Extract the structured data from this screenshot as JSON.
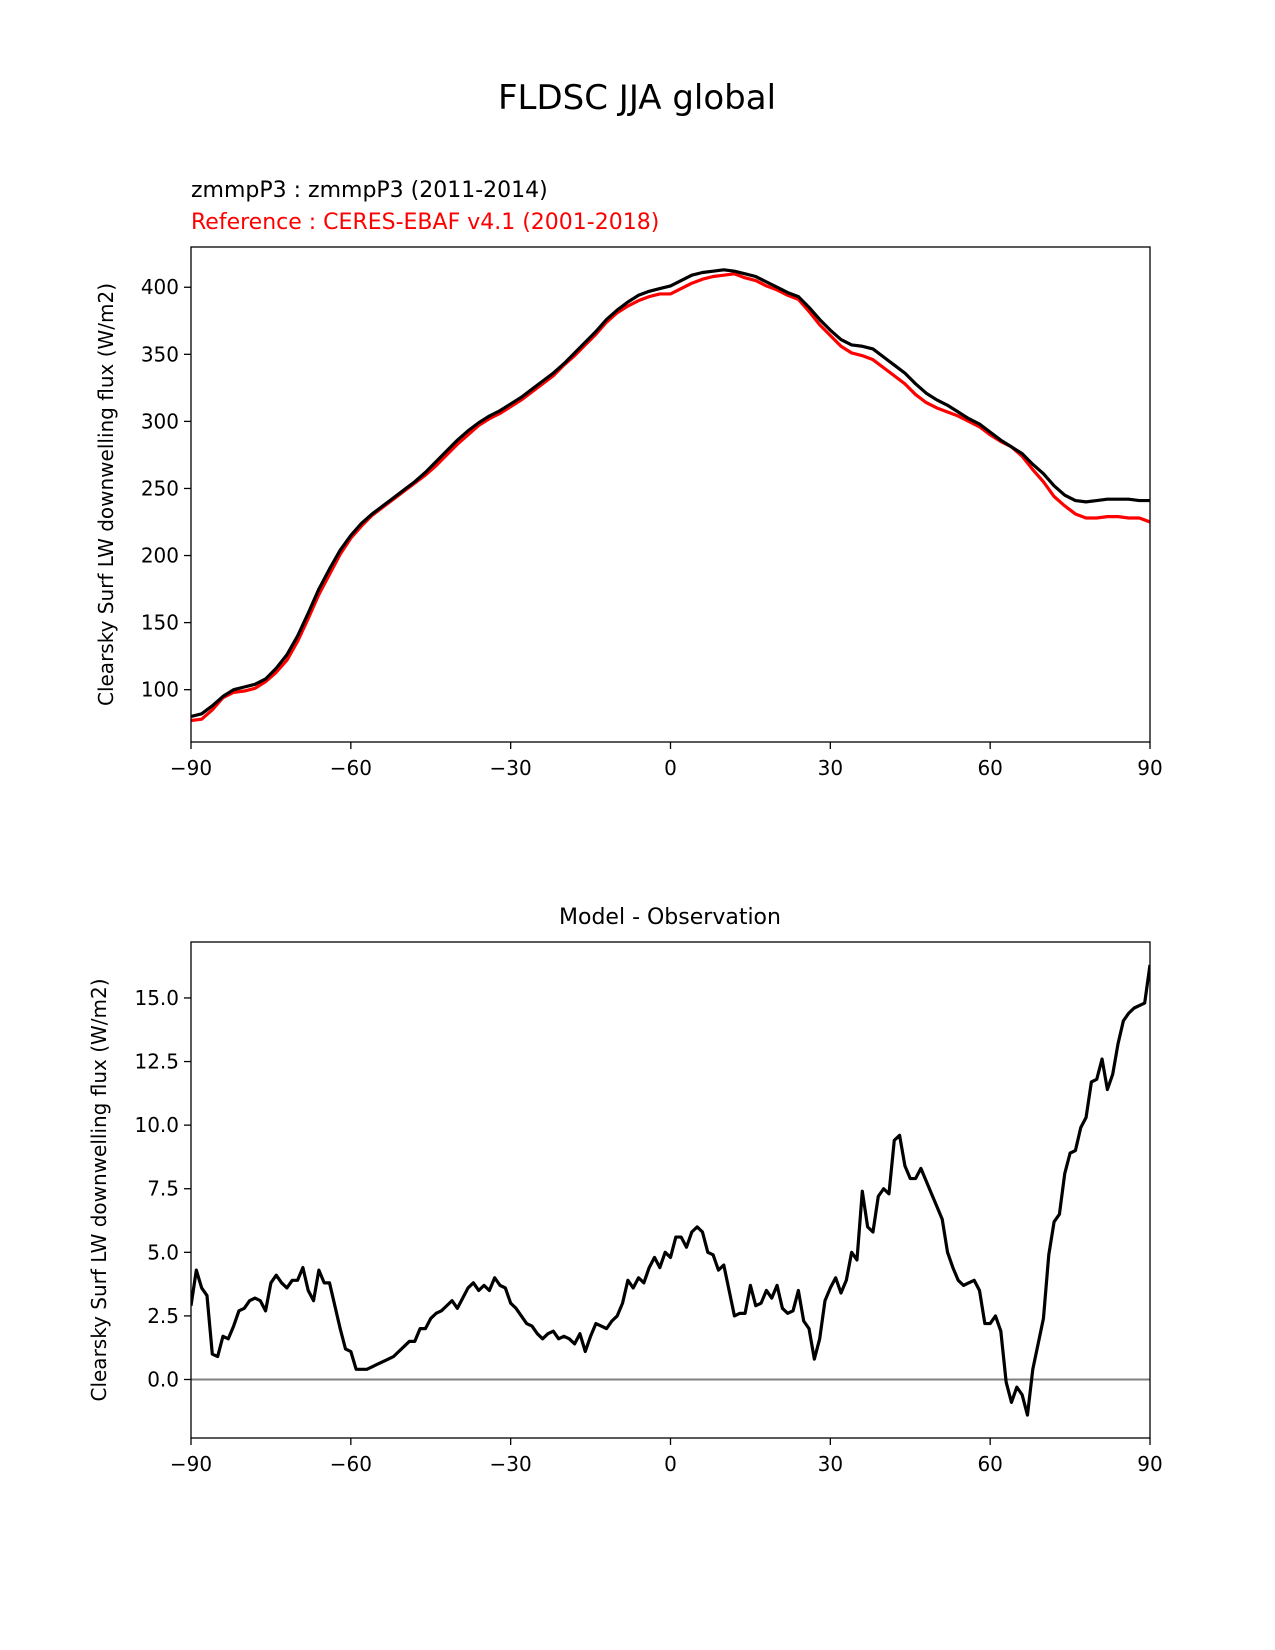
{
  "figure": {
    "title": "FLDSC JJA global",
    "legend_model": "zmmpP3 : zmmpP3 (2011-2014)",
    "legend_ref": "Reference : CERES-EBAF v4.1 (2001-2018)",
    "colors": {
      "model": "#000000",
      "reference": "#ff0000",
      "zero_line": "#808080"
    }
  },
  "chart_data": [
    {
      "type": "line",
      "title": "",
      "xlabel": "",
      "ylabel": "Clearsky Surf LW downwelling flux (W/m2)",
      "xlim": [
        -90,
        90
      ],
      "ylim": [
        61,
        430
      ],
      "xticks": [
        -90,
        -60,
        -30,
        0,
        30,
        60,
        90
      ],
      "xtick_labels": [
        "−90",
        "−60",
        "−30",
        "0",
        "30",
        "60",
        "90"
      ],
      "yticks": [
        100,
        150,
        200,
        250,
        300,
        350,
        400
      ],
      "ytick_labels": [
        "100",
        "150",
        "200",
        "250",
        "300",
        "350",
        "400"
      ],
      "series": [
        {
          "name": "zmmpP3 : zmmpP3 (2011-2014)",
          "color": "#000000",
          "x": [
            -90,
            -88,
            -86,
            -84,
            -82,
            -80,
            -78,
            -76,
            -74,
            -72,
            -70,
            -68,
            -66,
            -64,
            -62,
            -60,
            -58,
            -56,
            -54,
            -52,
            -50,
            -48,
            -46,
            -44,
            -42,
            -40,
            -38,
            -36,
            -34,
            -32,
            -30,
            -28,
            -26,
            -24,
            -22,
            -20,
            -18,
            -16,
            -14,
            -12,
            -10,
            -8,
            -6,
            -4,
            -2,
            0,
            2,
            4,
            6,
            8,
            10,
            12,
            14,
            16,
            18,
            20,
            22,
            24,
            26,
            28,
            30,
            32,
            34,
            36,
            38,
            40,
            42,
            44,
            46,
            48,
            50,
            52,
            54,
            56,
            58,
            60,
            62,
            64,
            66,
            68,
            70,
            72,
            74,
            76,
            78,
            80,
            82,
            84,
            86,
            88,
            90
          ],
          "y": [
            80,
            82,
            88,
            95,
            100,
            102,
            104,
            108,
            116,
            126,
            140,
            157,
            175,
            190,
            204,
            215,
            224,
            231,
            237,
            243,
            249,
            255,
            262,
            270,
            278,
            286,
            293,
            299,
            304,
            308,
            313,
            318,
            324,
            330,
            336,
            343,
            351,
            359,
            367,
            376,
            383,
            389,
            394,
            397,
            399,
            401,
            405,
            409,
            411,
            412,
            413,
            412,
            410,
            408,
            404,
            400,
            396,
            393,
            385,
            376,
            368,
            361,
            357,
            356,
            354,
            348,
            342,
            336,
            328,
            321,
            316,
            312,
            307,
            302,
            298,
            292,
            286,
            281,
            276,
            268,
            261,
            252,
            245,
            241,
            240,
            241,
            242,
            242,
            242,
            241,
            241
          ]
        },
        {
          "name": "Reference : CERES-EBAF v4.1 (2001-2018)",
          "color": "#ff0000",
          "x": [
            -90,
            -88,
            -86,
            -84,
            -82,
            -80,
            -78,
            -76,
            -74,
            -72,
            -70,
            -68,
            -66,
            -64,
            -62,
            -60,
            -58,
            -56,
            -54,
            -52,
            -50,
            -48,
            -46,
            -44,
            -42,
            -40,
            -38,
            -36,
            -34,
            -32,
            -30,
            -28,
            -26,
            -24,
            -22,
            -20,
            -18,
            -16,
            -14,
            -12,
            -10,
            -8,
            -6,
            -4,
            -2,
            0,
            2,
            4,
            6,
            8,
            10,
            12,
            14,
            16,
            18,
            20,
            22,
            24,
            26,
            28,
            30,
            32,
            34,
            36,
            38,
            40,
            42,
            44,
            46,
            48,
            50,
            52,
            54,
            56,
            58,
            60,
            62,
            64,
            66,
            68,
            70,
            72,
            74,
            76,
            78,
            80,
            82,
            84,
            86,
            88,
            90
          ],
          "y": [
            77,
            78,
            85,
            94,
            98,
            99,
            101,
            106,
            113,
            122,
            136,
            153,
            171,
            186,
            201,
            213,
            222,
            230,
            236,
            242,
            248,
            254,
            260,
            267,
            275,
            283,
            290,
            297,
            302,
            306,
            311,
            316,
            322,
            328,
            334,
            342,
            349,
            357,
            365,
            374,
            381,
            386,
            390,
            393,
            395,
            395,
            399,
            403,
            406,
            408,
            409,
            410,
            407,
            405,
            401,
            398,
            394,
            391,
            382,
            372,
            364,
            356,
            351,
            349,
            346,
            340,
            334,
            328,
            320,
            314,
            310,
            307,
            304,
            300,
            296,
            290,
            285,
            281,
            274,
            264,
            255,
            244,
            237,
            231,
            228,
            228,
            229,
            229,
            228,
            228,
            225
          ]
        }
      ]
    },
    {
      "type": "line",
      "title": "Model - Observation",
      "xlabel": "",
      "ylabel": "Clearsky Surf LW downwelling flux (W/m2)",
      "xlim": [
        -90,
        90
      ],
      "ylim": [
        -2.3,
        17.2
      ],
      "xticks": [
        -90,
        -60,
        -30,
        0,
        30,
        60,
        90
      ],
      "xtick_labels": [
        "−90",
        "−60",
        "−30",
        "0",
        "30",
        "60",
        "90"
      ],
      "yticks": [
        0.0,
        2.5,
        5.0,
        7.5,
        10.0,
        12.5,
        15.0
      ],
      "ytick_labels": [
        "0.0",
        "2.5",
        "5.0",
        "7.5",
        "10.0",
        "12.5",
        "15.0"
      ],
      "zero_line": 0,
      "series": [
        {
          "name": "",
          "color": "#000000",
          "x": [
            -90,
            -89,
            -88,
            -87,
            -86,
            -85,
            -84,
            -83,
            -82,
            -81,
            -80,
            -79,
            -78,
            -77,
            -76,
            -75,
            -74,
            -73,
            -72,
            -71,
            -70,
            -69,
            -68,
            -67,
            -66,
            -65,
            -64,
            -63,
            -62,
            -61,
            -60,
            -59,
            -58,
            -57,
            -56,
            -55,
            -54,
            -53,
            -52,
            -51,
            -50,
            -49,
            -48,
            -47,
            -46,
            -45,
            -44,
            -43,
            -42,
            -41,
            -40,
            -39,
            -38,
            -37,
            -36,
            -35,
            -34,
            -33,
            -32,
            -31,
            -30,
            -29,
            -28,
            -27,
            -26,
            -25,
            -24,
            -23,
            -22,
            -21,
            -20,
            -19,
            -18,
            -17,
            -16,
            -15,
            -14,
            -13,
            -12,
            -11,
            -10,
            -9,
            -8,
            -7,
            -6,
            -5,
            -4,
            -3,
            -2,
            -1,
            0,
            1,
            2,
            3,
            4,
            5,
            6,
            7,
            8,
            9,
            10,
            11,
            12,
            13,
            14,
            15,
            16,
            17,
            18,
            19,
            20,
            21,
            22,
            23,
            24,
            25,
            26,
            27,
            28,
            29,
            30,
            31,
            32,
            33,
            34,
            35,
            36,
            37,
            38,
            39,
            40,
            41,
            42,
            43,
            44,
            45,
            46,
            47,
            48,
            49,
            50,
            51,
            52,
            53,
            54,
            55,
            56,
            57,
            58,
            59,
            60,
            61,
            62,
            63,
            64,
            65,
            66,
            67,
            68,
            69,
            70,
            71,
            72,
            73,
            74,
            75,
            76,
            77,
            78,
            79,
            80,
            81,
            82,
            83,
            84,
            85,
            86,
            87,
            88,
            89,
            90
          ],
          "y": [
            2.9,
            4.3,
            3.6,
            3.3,
            1.0,
            0.9,
            1.7,
            1.6,
            2.1,
            2.7,
            2.8,
            3.1,
            3.2,
            3.1,
            2.7,
            3.8,
            4.1,
            3.8,
            3.6,
            3.9,
            3.9,
            4.4,
            3.5,
            3.1,
            4.3,
            3.8,
            3.8,
            2.9,
            2.0,
            1.2,
            1.1,
            0.4,
            0.4,
            0.4,
            0.5,
            0.6,
            0.7,
            0.8,
            0.9,
            1.1,
            1.3,
            1.5,
            1.5,
            2.0,
            2.0,
            2.4,
            2.6,
            2.7,
            2.9,
            3.1,
            2.8,
            3.2,
            3.6,
            3.8,
            3.5,
            3.7,
            3.5,
            4.0,
            3.7,
            3.6,
            3.0,
            2.8,
            2.5,
            2.2,
            2.1,
            1.8,
            1.6,
            1.8,
            1.9,
            1.6,
            1.7,
            1.6,
            1.4,
            1.8,
            1.1,
            1.7,
            2.2,
            2.1,
            2.0,
            2.3,
            2.5,
            3.0,
            3.9,
            3.6,
            4.0,
            3.8,
            4.4,
            4.8,
            4.4,
            5.0,
            4.8,
            5.6,
            5.6,
            5.2,
            5.8,
            6.0,
            5.8,
            5.0,
            4.9,
            4.3,
            4.5,
            3.5,
            2.5,
            2.6,
            2.6,
            3.7,
            2.9,
            3.0,
            3.5,
            3.2,
            3.7,
            2.8,
            2.6,
            2.7,
            3.5,
            2.3,
            2.0,
            0.8,
            1.6,
            3.1,
            3.6,
            4.0,
            3.4,
            3.9,
            5.0,
            4.7,
            7.4,
            6.0,
            5.8,
            7.2,
            7.5,
            7.3,
            9.4,
            9.6,
            8.4,
            7.9,
            7.9,
            8.3,
            7.8,
            7.3,
            6.8,
            6.3,
            5.0,
            4.4,
            3.9,
            3.7,
            3.8,
            3.9,
            3.5,
            2.2,
            2.2,
            2.5,
            1.9,
            -0.1,
            -0.9,
            -0.3,
            -0.6,
            -1.4,
            0.4,
            1.4,
            2.4,
            4.9,
            6.2,
            6.5,
            8.1,
            8.9,
            9.0,
            9.9,
            10.3,
            11.7,
            11.8,
            12.6,
            11.4,
            12.0,
            13.2,
            14.1,
            14.4,
            14.6,
            14.7,
            14.8,
            16.3
          ]
        }
      ]
    }
  ]
}
